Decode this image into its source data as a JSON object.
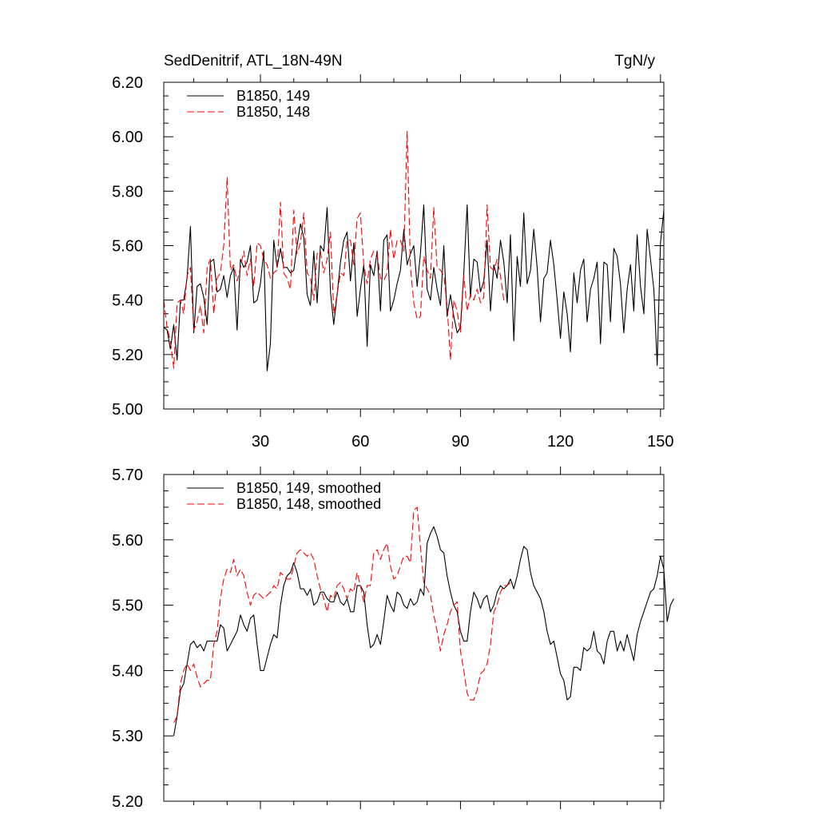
{
  "header": {
    "left": "SedDenitrif, ATL_18N-49N",
    "right": "TgN/y"
  },
  "colors": {
    "series_149": "#000000",
    "series_148": "#ff0000",
    "axis": "#000000"
  },
  "chart_data": [
    {
      "type": "line",
      "title": "",
      "xlabel": "",
      "ylabel": "",
      "xlim": [
        1,
        151
      ],
      "ylim": [
        5.0,
        6.2
      ],
      "yticks": [
        "5.00",
        "5.20",
        "5.40",
        "5.60",
        "5.80",
        "6.00",
        "6.20"
      ],
      "xticks": [
        "30",
        "60",
        "90",
        "120",
        "150"
      ],
      "legend_position": "top-left",
      "series": [
        {
          "name": "B1850, 149",
          "style": "solid",
          "color": "#000000",
          "x_start": 1,
          "values": [
            5.3,
            5.29,
            5.22,
            5.31,
            5.18,
            5.4,
            5.4,
            5.48,
            5.67,
            5.28,
            5.45,
            5.46,
            5.41,
            5.31,
            5.54,
            5.55,
            5.43,
            5.44,
            5.49,
            5.41,
            5.49,
            5.52,
            5.29,
            5.55,
            5.52,
            5.54,
            5.6,
            5.39,
            5.4,
            5.46,
            5.58,
            5.14,
            5.24,
            5.62,
            5.52,
            5.59,
            5.52,
            5.52,
            5.5,
            5.51,
            5.6,
            5.68,
            5.63,
            5.42,
            5.38,
            5.58,
            5.39,
            5.6,
            5.58,
            5.74,
            5.43,
            5.31,
            5.42,
            5.54,
            5.62,
            5.65,
            5.47,
            5.61,
            5.34,
            5.44,
            5.53,
            5.23,
            5.53,
            5.49,
            5.58,
            5.36,
            5.62,
            5.64,
            5.36,
            5.4,
            5.46,
            5.51,
            5.66,
            5.53,
            5.57,
            5.6,
            5.45,
            5.57,
            5.75,
            5.44,
            5.4,
            5.52,
            5.44,
            5.38,
            5.6,
            5.34,
            5.42,
            5.34,
            5.28,
            5.3,
            5.5,
            5.75,
            5.41,
            5.55,
            5.54,
            5.43,
            5.47,
            5.62,
            5.36,
            5.53,
            5.48,
            5.62,
            5.54,
            5.39,
            5.64,
            5.25,
            5.56,
            5.45,
            5.72,
            5.46,
            5.51,
            5.66,
            5.52,
            5.32,
            5.48,
            5.5,
            5.62,
            5.53,
            5.4,
            5.26,
            5.43,
            5.35,
            5.21,
            5.5,
            5.39,
            5.51,
            5.55,
            5.32,
            5.44,
            5.48,
            5.54,
            5.24,
            5.54,
            5.53,
            5.32,
            5.59,
            5.56,
            5.46,
            5.28,
            5.44,
            5.53,
            5.36,
            5.64,
            5.45,
            5.35,
            5.66,
            5.55,
            5.44,
            5.16,
            5.61,
            5.73
          ]
        },
        {
          "name": "B1850, 148",
          "style": "dashed",
          "color": "#ff0000",
          "x_start": 1,
          "values": [
            5.4,
            5.3,
            5.25,
            5.15,
            5.39,
            5.4,
            5.35,
            5.49,
            5.52,
            5.29,
            5.32,
            5.38,
            5.28,
            5.52,
            5.55,
            5.35,
            5.48,
            5.5,
            5.6,
            5.85,
            5.51,
            5.53,
            5.47,
            5.52,
            5.58,
            5.49,
            5.55,
            5.45,
            5.61,
            5.6,
            5.55,
            5.53,
            5.48,
            5.5,
            5.51,
            5.76,
            5.5,
            5.48,
            5.44,
            5.73,
            5.57,
            5.61,
            5.72,
            5.5,
            5.48,
            5.4,
            5.57,
            5.58,
            5.5,
            5.55,
            5.65,
            5.35,
            5.42,
            5.5,
            5.49,
            5.62,
            5.62,
            5.53,
            5.7,
            5.72,
            5.53,
            5.46,
            5.55,
            5.58,
            5.57,
            5.48,
            5.47,
            5.5,
            5.66,
            5.55,
            5.62,
            5.62,
            5.58,
            6.02,
            5.52,
            5.39,
            5.33,
            5.34,
            5.56,
            5.51,
            5.48,
            5.74,
            5.52,
            5.51,
            5.49,
            5.38,
            5.18,
            5.4,
            5.36,
            5.28,
            5.49,
            5.36,
            5.42,
            5.4,
            5.44,
            5.39,
            5.41,
            5.75,
            5.52,
            5.51,
            5.55,
            5.49,
            5.4
          ]
        }
      ]
    },
    {
      "type": "line",
      "title": "",
      "xlabel": "",
      "ylabel": "",
      "xlim": [
        1,
        151
      ],
      "ylim": [
        5.2,
        5.7
      ],
      "yticks": [
        "5.20",
        "5.30",
        "5.40",
        "5.50",
        "5.60",
        "5.70"
      ],
      "xticks": [],
      "legend_position": "top-left",
      "series": [
        {
          "name": "B1850, 149, smoothed",
          "style": "solid",
          "color": "#000000",
          "x_start": 4,
          "values": [
            5.3,
            5.33,
            5.37,
            5.38,
            5.41,
            5.44,
            5.445,
            5.435,
            5.44,
            5.43,
            5.445,
            5.445,
            5.445,
            5.445,
            5.47,
            5.465,
            5.43,
            5.44,
            5.45,
            5.46,
            5.485,
            5.47,
            5.46,
            5.48,
            5.485,
            5.44,
            5.4,
            5.4,
            5.42,
            5.44,
            5.455,
            5.45,
            5.5,
            5.53,
            5.545,
            5.55,
            5.565,
            5.55,
            5.525,
            5.525,
            5.515,
            5.525,
            5.5,
            5.505,
            5.52,
            5.52,
            5.51,
            5.505,
            5.505,
            5.52,
            5.505,
            5.5,
            5.51,
            5.49,
            5.49,
            5.53,
            5.53,
            5.52,
            5.47,
            5.435,
            5.44,
            5.455,
            5.44,
            5.475,
            5.515,
            5.5,
            5.49,
            5.52,
            5.515,
            5.5,
            5.495,
            5.51,
            5.5,
            5.505,
            5.525,
            5.515,
            5.595,
            5.61,
            5.62,
            5.605,
            5.585,
            5.58,
            5.545,
            5.52,
            5.5,
            5.49,
            5.46,
            5.445,
            5.445,
            5.49,
            5.52,
            5.51,
            5.495,
            5.51,
            5.515,
            5.49,
            5.5,
            5.52,
            5.53,
            5.525,
            5.53,
            5.54,
            5.525,
            5.545,
            5.57,
            5.59,
            5.585,
            5.55,
            5.53,
            5.52,
            5.51,
            5.49,
            5.46,
            5.44,
            5.445,
            5.42,
            5.395,
            5.385,
            5.355,
            5.36,
            5.405,
            5.405,
            5.4,
            5.435,
            5.43,
            5.435,
            5.46,
            5.43,
            5.425,
            5.41,
            5.445,
            5.46,
            5.46,
            5.43,
            5.445,
            5.43,
            5.455,
            5.435,
            5.415,
            5.455,
            5.475,
            5.49,
            5.505,
            5.52,
            5.525,
            5.545,
            5.575,
            5.555,
            5.475,
            5.5,
            5.51
          ]
        },
        {
          "name": "B1850, 148, smoothed",
          "style": "dashed",
          "color": "#ff0000",
          "x_start": 4,
          "values": [
            5.32,
            5.33,
            5.38,
            5.4,
            5.41,
            5.4,
            5.41,
            5.39,
            5.375,
            5.38,
            5.385,
            5.385,
            5.44,
            5.46,
            5.51,
            5.54,
            5.555,
            5.55,
            5.57,
            5.545,
            5.555,
            5.545,
            5.52,
            5.5,
            5.515,
            5.52,
            5.515,
            5.51,
            5.515,
            5.52,
            5.53,
            5.525,
            5.55,
            5.545,
            5.54,
            5.54,
            5.56,
            5.58,
            5.585,
            5.58,
            5.575,
            5.58,
            5.57,
            5.545,
            5.525,
            5.51,
            5.49,
            5.515,
            5.51,
            5.53,
            5.535,
            5.525,
            5.51,
            5.525,
            5.52,
            5.55,
            5.53,
            5.505,
            5.53,
            5.53,
            5.58,
            5.585,
            5.57,
            5.585,
            5.595,
            5.56,
            5.54,
            5.545,
            5.56,
            5.575,
            5.575,
            5.565,
            5.645,
            5.65,
            5.59,
            5.535,
            5.525,
            5.515,
            5.485,
            5.46,
            5.43,
            5.455,
            5.47,
            5.49,
            5.5,
            5.505,
            5.43,
            5.4,
            5.365,
            5.355,
            5.355,
            5.37,
            5.395,
            5.4,
            5.41,
            5.44,
            5.49,
            5.5,
            5.52,
            5.53,
            5.53,
            5.535,
            5.535
          ]
        }
      ]
    }
  ]
}
